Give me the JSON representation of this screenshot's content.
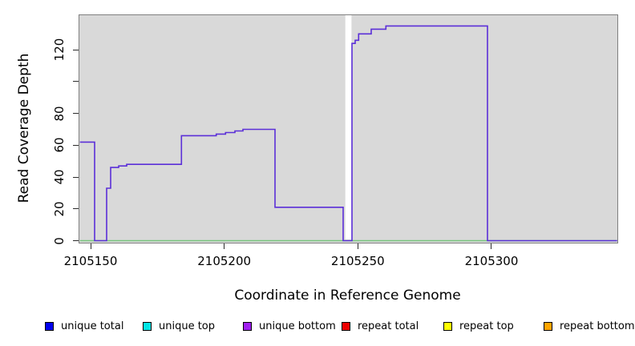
{
  "chart_data": {
    "type": "line",
    "subtype": "step-coverage",
    "title": "",
    "xlabel": "Coordinate in Reference Genome",
    "ylabel": "Read Coverage Depth",
    "xlim": [
      2105146,
      2105347
    ],
    "ylim": [
      0,
      140
    ],
    "grid": false,
    "plot_bg_color": "#d9d9d9",
    "x_ticks": [
      {
        "value": 2105150,
        "label": "2105150"
      },
      {
        "value": 2105200,
        "label": "2105200"
      },
      {
        "value": 2105250,
        "label": "2105250"
      },
      {
        "value": 2105300,
        "label": "2105300"
      }
    ],
    "y_ticks": [
      {
        "value": 0,
        "label": "0"
      },
      {
        "value": 20,
        "label": "20"
      },
      {
        "value": 40,
        "label": "40"
      },
      {
        "value": 60,
        "label": "60"
      },
      {
        "value": 80,
        "label": "80"
      },
      {
        "value": 100,
        "label": ""
      },
      {
        "value": 120,
        "label": "120"
      }
    ],
    "gap_region": {
      "start": 2105245.3,
      "end": 2105247.6
    },
    "series": [
      {
        "name": "coverage-step-line",
        "color": "#5b2fd8",
        "style": "step-after",
        "points": [
          [
            2105146.0,
            62
          ],
          [
            2105151.5,
            0
          ],
          [
            2105156.0,
            33
          ],
          [
            2105157.5,
            46
          ],
          [
            2105160.5,
            47
          ],
          [
            2105163.5,
            48
          ],
          [
            2105184.0,
            66
          ],
          [
            2105197.0,
            67
          ],
          [
            2105200.5,
            68
          ],
          [
            2105204.0,
            69
          ],
          [
            2105207.0,
            70
          ],
          [
            2105219.0,
            21
          ],
          [
            2105244.5,
            0
          ],
          [
            2105247.8,
            124
          ],
          [
            2105249.0,
            126
          ],
          [
            2105250.3,
            130
          ],
          [
            2105255.0,
            133
          ],
          [
            2105260.5,
            135
          ],
          [
            2105298.5,
            0
          ],
          [
            2105347.0,
            0
          ]
        ]
      },
      {
        "name": "zero-baseline",
        "color": "#77c47c",
        "style": "line",
        "points": [
          [
            2105146.0,
            0
          ],
          [
            2105347.0,
            0
          ]
        ]
      }
    ],
    "legend_position": "bottom"
  },
  "legend": {
    "items": [
      {
        "label": "unique total",
        "color": "#0000ee"
      },
      {
        "label": "unique top",
        "color": "#00e5e5"
      },
      {
        "label": "unique bottom",
        "color": "#a020f0"
      },
      {
        "label": "repeat total",
        "color": "#ee0000"
      },
      {
        "label": "repeat top",
        "color": "#ffff00"
      },
      {
        "label": "repeat bottom",
        "color": "#ffa500"
      }
    ]
  }
}
